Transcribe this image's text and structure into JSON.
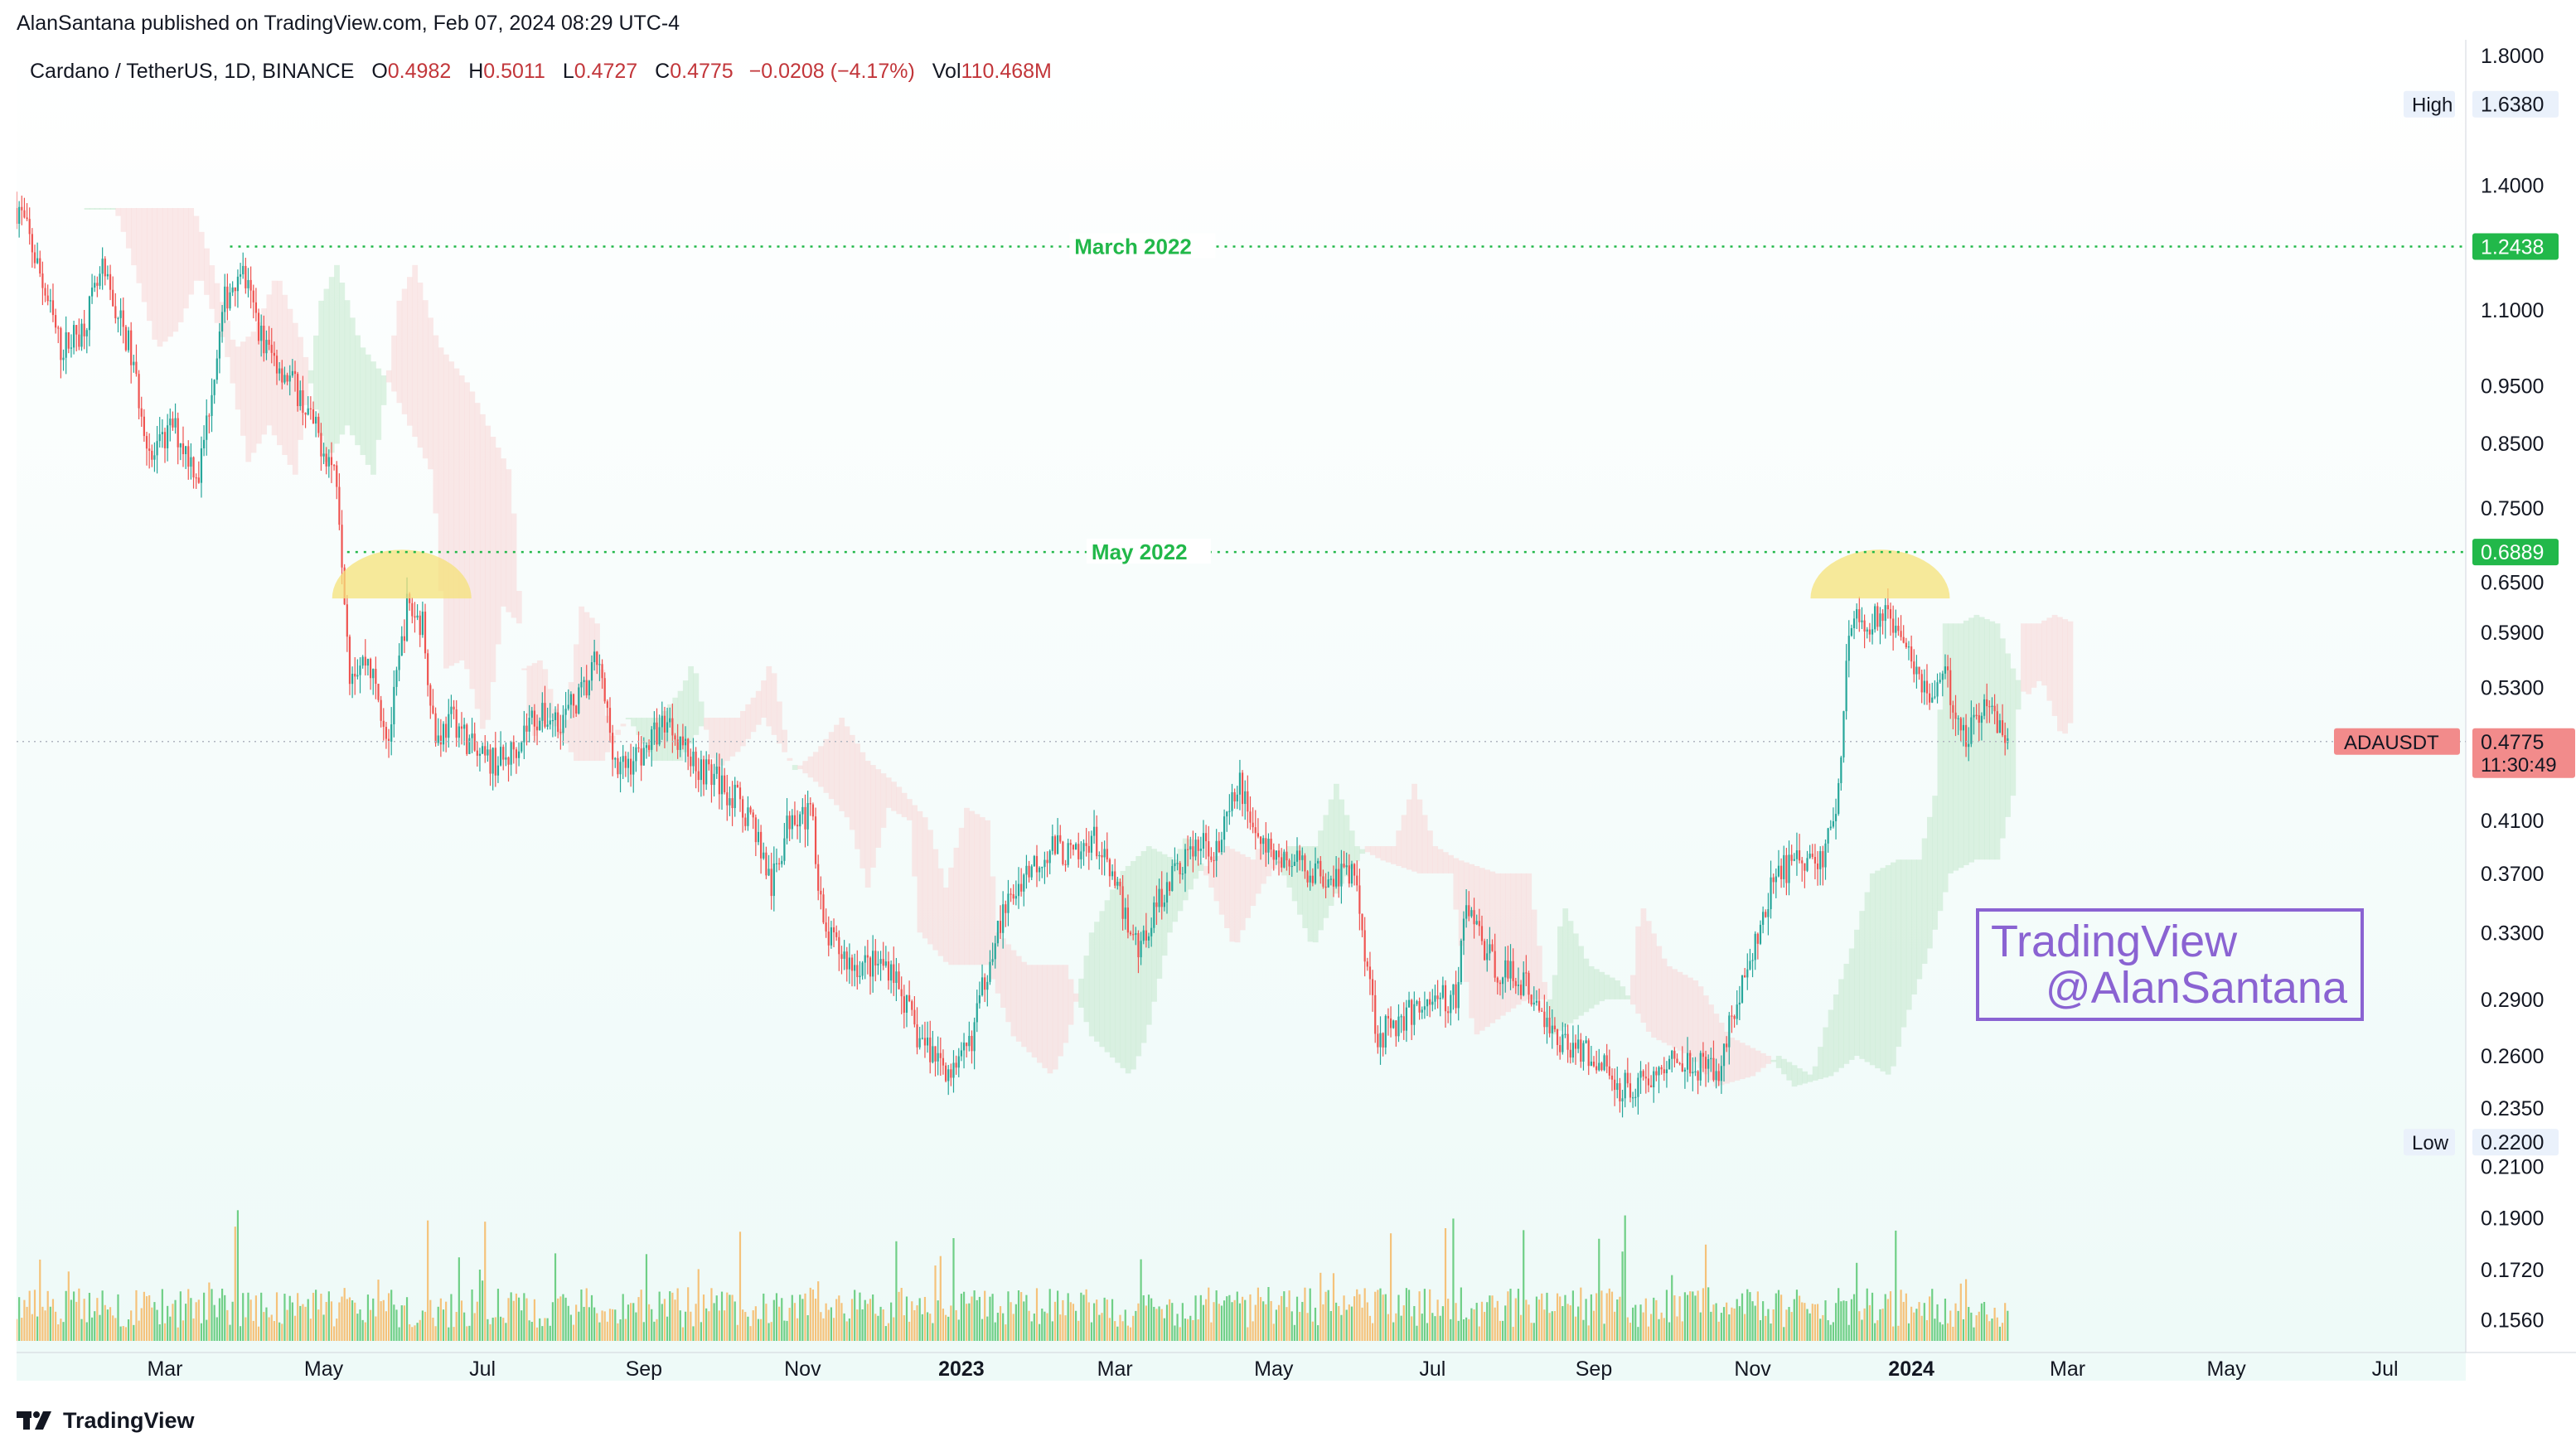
{
  "header": {
    "published_text": "AlanSantana published on TradingView.com, Feb 07, 2024 08:29 UTC-4"
  },
  "legend": {
    "symbol_text": "Cardano / TetherUS, 1D, BINANCE",
    "open_label": "O",
    "open_value": "0.4982",
    "high_label": "H",
    "high_value": "0.5011",
    "low_label": "L",
    "low_value": "0.4727",
    "close_label": "C",
    "close_value": "0.4775",
    "change_value": "−0.0208 (−4.17%)",
    "vol_label": "Vol",
    "vol_value": "110.468M"
  },
  "footer": {
    "brand_text": "TradingView",
    "logo_icon": "tradingview-logo-icon"
  },
  "watermark": {
    "line1": "TradingView",
    "line2": "@AlanSantana"
  },
  "colors": {
    "up": "#26a69a",
    "down": "#ef5350",
    "vol_up": "#6fcf86",
    "vol_down": "#f5c27a",
    "level": "#22b84a",
    "price_label_bg": "#f28b8b",
    "cloud_green": "#c8ead0",
    "cloud_red": "#f8d9d9",
    "highlight": "#f6e27a",
    "watermark": "#8a63d2",
    "background_tint": "#eefaf8"
  },
  "chart_data": {
    "type": "candlestick",
    "symbol": "ADAUSDT",
    "scale": "log",
    "ylim": [
      0.1498,
      1.82
    ],
    "xlim": [
      "2022-01-01",
      "2024-08-01"
    ],
    "grid": false,
    "y_ticks": [
      "1.8000",
      "1.4000",
      "1.1000",
      "0.9500",
      "0.8500",
      "0.7500",
      "0.6500",
      "0.5900",
      "0.5300",
      "0.4100",
      "0.3700",
      "0.3300",
      "0.2900",
      "0.2600",
      "0.2350",
      "0.2100",
      "0.1900",
      "0.1720",
      "0.1560"
    ],
    "x_ticks": [
      {
        "label": "Mar",
        "date": "2022-03-01",
        "bold": false
      },
      {
        "label": "May",
        "date": "2022-05-01",
        "bold": false
      },
      {
        "label": "Jul",
        "date": "2022-07-01",
        "bold": false
      },
      {
        "label": "Sep",
        "date": "2022-09-01",
        "bold": false
      },
      {
        "label": "Nov",
        "date": "2022-11-01",
        "bold": false
      },
      {
        "label": "2023",
        "date": "2023-01-01",
        "bold": true
      },
      {
        "label": "Mar",
        "date": "2023-03-01",
        "bold": false
      },
      {
        "label": "May",
        "date": "2023-05-01",
        "bold": false
      },
      {
        "label": "Jul",
        "date": "2023-07-01",
        "bold": false
      },
      {
        "label": "Sep",
        "date": "2023-09-01",
        "bold": false
      },
      {
        "label": "Nov",
        "date": "2023-11-01",
        "bold": false
      },
      {
        "label": "2024",
        "date": "2024-01-01",
        "bold": true
      },
      {
        "label": "Mar",
        "date": "2024-03-01",
        "bold": false
      },
      {
        "label": "May",
        "date": "2024-05-01",
        "bold": false
      },
      {
        "label": "Jul",
        "date": "2024-07-01",
        "bold": false
      }
    ],
    "price_path": [
      [
        "2022-01-04",
        1.34
      ],
      [
        "2022-01-08",
        1.26
      ],
      [
        "2022-01-12",
        1.18
      ],
      [
        "2022-01-20",
        1.02
      ],
      [
        "2022-01-28",
        1.06
      ],
      [
        "2022-02-05",
        1.18
      ],
      [
        "2022-02-15",
        1.03
      ],
      [
        "2022-02-24",
        0.82
      ],
      [
        "2022-03-04",
        0.88
      ],
      [
        "2022-03-14",
        0.8
      ],
      [
        "2022-03-24",
        1.12
      ],
      [
        "2022-03-30",
        1.2
      ],
      [
        "2022-04-08",
        1.03
      ],
      [
        "2022-04-20",
        0.95
      ],
      [
        "2022-04-28",
        0.87
      ],
      [
        "2022-05-06",
        0.8
      ],
      [
        "2022-05-11",
        0.55
      ],
      [
        "2022-05-18",
        0.56
      ],
      [
        "2022-05-26",
        0.48
      ],
      [
        "2022-06-02",
        0.62
      ],
      [
        "2022-06-08",
        0.6
      ],
      [
        "2022-06-13",
        0.48
      ],
      [
        "2022-06-20",
        0.5
      ],
      [
        "2022-06-30",
        0.46
      ],
      [
        "2022-07-10",
        0.46
      ],
      [
        "2022-07-20",
        0.5
      ],
      [
        "2022-08-01",
        0.5
      ],
      [
        "2022-08-10",
        0.53
      ],
      [
        "2022-08-14",
        0.56
      ],
      [
        "2022-08-22",
        0.45
      ],
      [
        "2022-09-01",
        0.47
      ],
      [
        "2022-09-10",
        0.5
      ],
      [
        "2022-09-20",
        0.46
      ],
      [
        "2022-10-01",
        0.44
      ],
      [
        "2022-10-13",
        0.41
      ],
      [
        "2022-10-20",
        0.36
      ],
      [
        "2022-10-28",
        0.42
      ],
      [
        "2022-11-05",
        0.41
      ],
      [
        "2022-11-09",
        0.33
      ],
      [
        "2022-11-20",
        0.31
      ],
      [
        "2022-12-05",
        0.31
      ],
      [
        "2022-12-15",
        0.27
      ],
      [
        "2022-12-30",
        0.25
      ],
      [
        "2023-01-05",
        0.27
      ],
      [
        "2023-01-14",
        0.33
      ],
      [
        "2023-01-25",
        0.37
      ],
      [
        "2023-02-05",
        0.39
      ],
      [
        "2023-02-15",
        0.38
      ],
      [
        "2023-02-20",
        0.4
      ],
      [
        "2023-03-01",
        0.36
      ],
      [
        "2023-03-10",
        0.32
      ],
      [
        "2023-03-20",
        0.36
      ],
      [
        "2023-03-31",
        0.39
      ],
      [
        "2023-04-10",
        0.39
      ],
      [
        "2023-04-18",
        0.44
      ],
      [
        "2023-04-26",
        0.39
      ],
      [
        "2023-05-05",
        0.38
      ],
      [
        "2023-05-20",
        0.37
      ],
      [
        "2023-06-01",
        0.37
      ],
      [
        "2023-06-10",
        0.27
      ],
      [
        "2023-06-20",
        0.28
      ],
      [
        "2023-06-30",
        0.29
      ],
      [
        "2023-07-10",
        0.29
      ],
      [
        "2023-07-14",
        0.35
      ],
      [
        "2023-07-24",
        0.31
      ],
      [
        "2023-08-05",
        0.3
      ],
      [
        "2023-08-17",
        0.27
      ],
      [
        "2023-09-01",
        0.26
      ],
      [
        "2023-09-11",
        0.245
      ],
      [
        "2023-09-25",
        0.25
      ],
      [
        "2023-10-05",
        0.26
      ],
      [
        "2023-10-18",
        0.25
      ],
      [
        "2023-10-24",
        0.28
      ],
      [
        "2023-11-02",
        0.32
      ],
      [
        "2023-11-10",
        0.37
      ],
      [
        "2023-11-20",
        0.38
      ],
      [
        "2023-11-28",
        0.38
      ],
      [
        "2023-12-04",
        0.43
      ],
      [
        "2023-12-08",
        0.6
      ],
      [
        "2023-12-14",
        0.6
      ],
      [
        "2023-12-20",
        0.61
      ],
      [
        "2023-12-28",
        0.6
      ],
      [
        "2024-01-03",
        0.55
      ],
      [
        "2024-01-08",
        0.52
      ],
      [
        "2024-01-14",
        0.54
      ],
      [
        "2024-01-22",
        0.48
      ],
      [
        "2024-01-28",
        0.51
      ],
      [
        "2024-02-03",
        0.5
      ],
      [
        "2024-02-07",
        0.4775
      ]
    ],
    "levels": [
      {
        "label": "March 2022",
        "value": 1.2438,
        "axis_label": "1.2438"
      },
      {
        "label": "May 2022",
        "value": 0.6889,
        "axis_label": "0.6889"
      }
    ],
    "highs_lows": {
      "high_label": "High",
      "high_value": "1.6380",
      "low_label": "Low",
      "low_value": "0.2200"
    },
    "current_price": {
      "symbol": "ADAUSDT",
      "value": "0.4775",
      "countdown": "11:30:49"
    },
    "volume": {
      "pane": "bottom",
      "unit": "M",
      "scale_note": "relative"
    },
    "annotations": [
      {
        "type": "highlight",
        "at": "2022-05-31",
        "near_level": "May 2022"
      },
      {
        "type": "highlight",
        "at": "2023-12-20",
        "near_level": "May 2022"
      }
    ]
  }
}
